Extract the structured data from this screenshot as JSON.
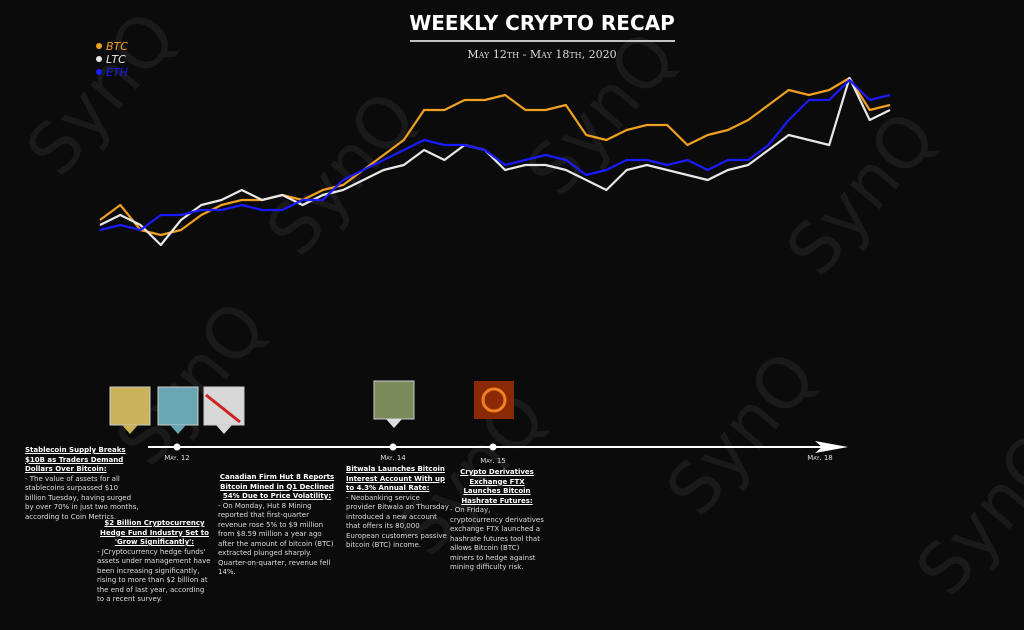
{
  "chart_data": {
    "type": "line",
    "title": "WEEKLY CRYPTO RECAP",
    "subtitle": "May 12th - May 18th, 2020",
    "legend": "top-left",
    "series": [
      {
        "name": "BTC",
        "color": "#f0a020",
        "values": [
          40,
          55,
          30,
          25,
          30,
          45,
          55,
          60,
          60,
          65,
          60,
          70,
          75,
          90,
          105,
          120,
          150,
          150,
          160,
          160,
          165,
          150,
          150,
          155,
          125,
          120,
          130,
          135,
          135,
          115,
          125,
          130,
          140,
          155,
          170,
          165,
          170,
          182,
          150,
          155
        ]
      },
      {
        "name": "LTC",
        "color": "#e8e8e8",
        "values": [
          35,
          45,
          35,
          15,
          40,
          55,
          60,
          70,
          60,
          65,
          55,
          65,
          70,
          80,
          90,
          95,
          110,
          100,
          115,
          110,
          90,
          95,
          95,
          90,
          80,
          70,
          90,
          95,
          90,
          85,
          80,
          90,
          95,
          110,
          125,
          120,
          115,
          182,
          140,
          150
        ]
      },
      {
        "name": "ETH",
        "color": "#1a1aff",
        "values": [
          30,
          35,
          30,
          45,
          45,
          50,
          50,
          55,
          50,
          50,
          60,
          60,
          80,
          90,
          100,
          110,
          120,
          115,
          115,
          110,
          95,
          100,
          105,
          100,
          85,
          90,
          100,
          100,
          95,
          100,
          90,
          100,
          100,
          115,
          140,
          160,
          160,
          180,
          160,
          165
        ]
      }
    ]
  },
  "watermark": "SynQ",
  "timeline": {
    "dates": [
      "May. 12",
      "May. 14",
      "May. 15",
      "May. 18"
    ]
  },
  "articles": [
    {
      "title": "Stablecoin Supply Breaks $10B as Traders Demand Dollars Over Bitcoin:",
      "body": "- The value of assets for all stablecoins surpassed $10 billion Tuesday, having surged by over 70% in just two months, according to Coin Metrics."
    },
    {
      "title": "$2 Billion Cryptocurrency Hedge Fund Industry Set to 'Grow Significantly':",
      "body": "- JCryptocurrency hedge funds' assets under management have been increasing significantly, rising to more than $2 billion at the end of last year, according to a recent survey."
    },
    {
      "title": "Canadian Firm Hut 8 Reports Bitcoin Mined in Q1 Declined 54% Due to Price Volatility:",
      "body": "- On Monday, Hut 8 Mining reported that first-quarter revenue rose 5% to $9 million from $8.59 million a year ago after the amount of bitcoin (BTC) extracted plunged sharply. Quarter-on-quarter, revenue fell 14%."
    },
    {
      "title": "Bitwala Launches Bitcoin Interest Account With up to 4.3% Annual Rate:",
      "body": "- Neobanking service provider Bitwala on Thursday introduced a new account that offers its 80,000 European customers passive bitcoin (BTC) income."
    },
    {
      "title": "Crypto Derivatives Exchange FTX Launches Bitcoin Hashrate Futures:",
      "body": "- On Friday, cryptocurrency derivatives exchange FTX launched a hashrate futures tool that allows Bitcoin (BTC) miners to hedge against mining difficulty risk."
    }
  ]
}
